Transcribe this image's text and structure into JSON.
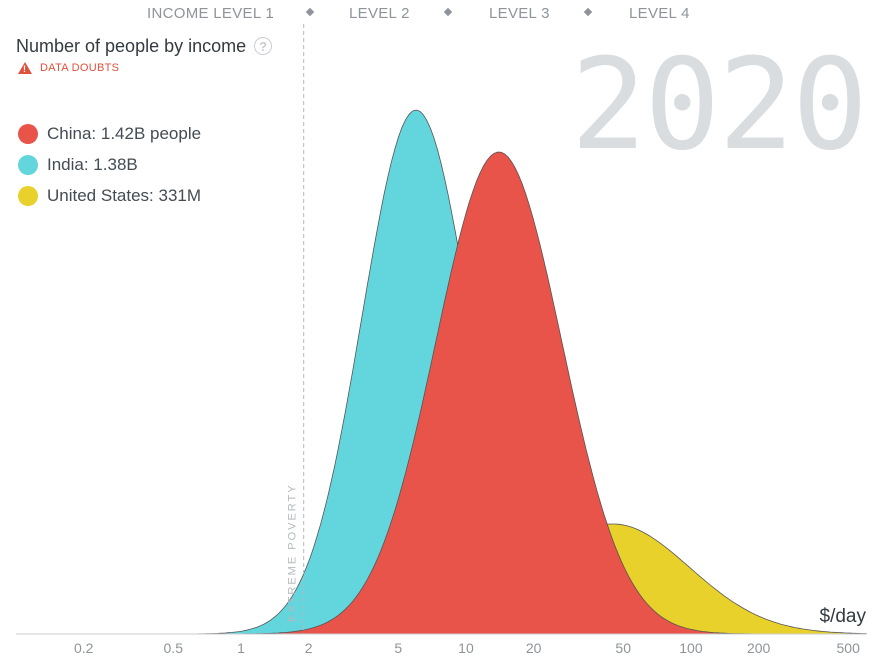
{
  "income_levels": {
    "labels": [
      "INCOME LEVEL 1",
      "LEVEL 2",
      "LEVEL 3",
      "LEVEL 4"
    ]
  },
  "title": "Number of people by income",
  "help_icon": "question-mark-icon",
  "data_doubts": "DATA DOUBTS",
  "year": "2020",
  "poverty_line_label": "EXTREME POVERTY",
  "unit_label": "$/day",
  "colors": {
    "china": "#e8534a",
    "india": "#62d6dc",
    "united_states": "#e9d12b",
    "outline": "#555555",
    "tick": "#8e949a"
  },
  "chart_data": {
    "type": "area",
    "title": "Number of people by income",
    "xlabel": "$/day",
    "ylabel": "",
    "x_scale": "log",
    "xlim": [
      0.1,
      600
    ],
    "x_ticks": [
      0.2,
      0.5,
      1,
      2,
      5,
      10,
      20,
      50,
      100,
      200,
      500
    ],
    "x_tick_labels": [
      "0.2",
      "0.5",
      "1",
      "2",
      "5",
      "10",
      "20",
      "50",
      "100",
      "200",
      "500"
    ],
    "poverty_line": 1.9,
    "legend_placement": "top-left",
    "grid": false,
    "series": [
      {
        "name": "China",
        "label": "China: 1.42B people",
        "color": "#e8534a",
        "peak_income": 14,
        "relative_peak": 0.92,
        "spread_decades": 0.28
      },
      {
        "name": "India",
        "label": "India: 1.38B",
        "color": "#62d6dc",
        "peak_income": 6,
        "relative_peak": 1.0,
        "spread_decades": 0.24
      },
      {
        "name": "United States",
        "label": "United States: 331M",
        "color": "#e9d12b",
        "peak_income": 45,
        "relative_peak": 0.21,
        "spread_decades": 0.34
      }
    ]
  }
}
